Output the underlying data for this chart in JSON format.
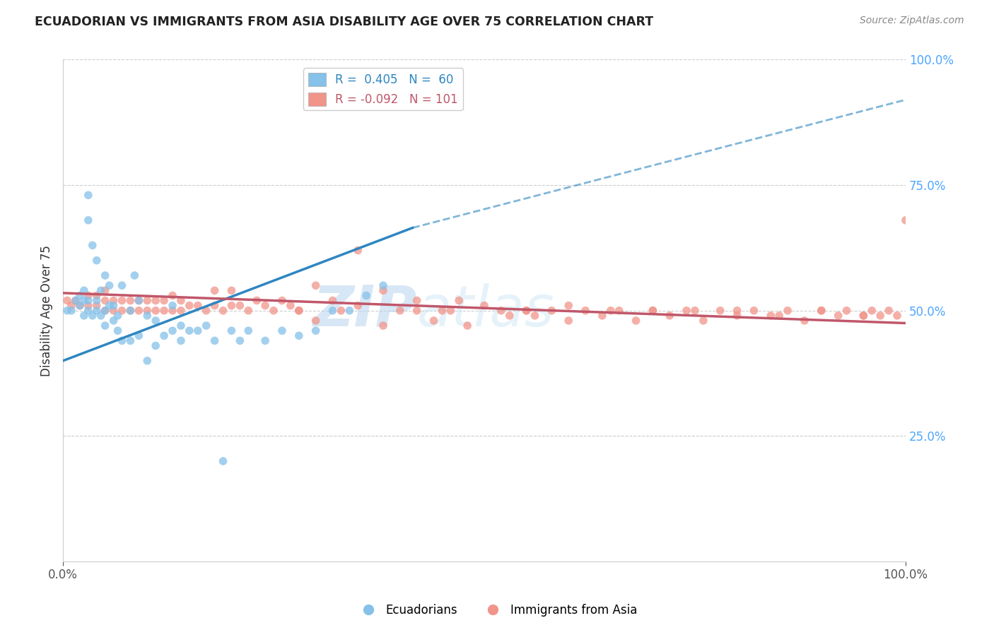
{
  "title": "ECUADORIAN VS IMMIGRANTS FROM ASIA DISABILITY AGE OVER 75 CORRELATION CHART",
  "source": "Source: ZipAtlas.com",
  "ylabel": "Disability Age Over 75",
  "xmin": 0.0,
  "xmax": 1.0,
  "ymin": 0.0,
  "ymax": 1.0,
  "yticks": [
    0.25,
    0.5,
    0.75,
    1.0
  ],
  "ytick_labels": [
    "25.0%",
    "50.0%",
    "75.0%",
    "100.0%"
  ],
  "blue_R": 0.405,
  "blue_N": 60,
  "pink_R": -0.092,
  "pink_N": 101,
  "blue_color": "#85c1e9",
  "pink_color": "#f1948a",
  "blue_line_color": "#2e86c1",
  "pink_line_color": "#c0576a",
  "blue_line_solid": [
    [
      0.0,
      0.4
    ],
    [
      0.415,
      0.665
    ]
  ],
  "blue_line_dashed": [
    [
      0.415,
      0.665
    ],
    [
      1.0,
      0.92
    ]
  ],
  "pink_line_solid": [
    [
      0.0,
      0.535
    ],
    [
      1.0,
      0.475
    ]
  ],
  "watermark": "ZIPatlas",
  "blue_scatter_x": [
    0.005,
    0.01,
    0.015,
    0.02,
    0.02,
    0.025,
    0.025,
    0.025,
    0.03,
    0.03,
    0.03,
    0.03,
    0.035,
    0.035,
    0.04,
    0.04,
    0.04,
    0.045,
    0.045,
    0.05,
    0.05,
    0.05,
    0.055,
    0.055,
    0.06,
    0.06,
    0.065,
    0.065,
    0.07,
    0.07,
    0.08,
    0.08,
    0.085,
    0.09,
    0.09,
    0.1,
    0.1,
    0.11,
    0.11,
    0.12,
    0.13,
    0.13,
    0.14,
    0.14,
    0.15,
    0.16,
    0.17,
    0.18,
    0.19,
    0.2,
    0.21,
    0.22,
    0.24,
    0.26,
    0.28,
    0.3,
    0.32,
    0.34,
    0.36,
    0.38
  ],
  "blue_scatter_y": [
    0.5,
    0.5,
    0.52,
    0.51,
    0.53,
    0.49,
    0.52,
    0.54,
    0.5,
    0.52,
    0.68,
    0.73,
    0.49,
    0.63,
    0.5,
    0.52,
    0.6,
    0.49,
    0.54,
    0.47,
    0.5,
    0.57,
    0.51,
    0.55,
    0.48,
    0.51,
    0.46,
    0.49,
    0.44,
    0.55,
    0.44,
    0.5,
    0.57,
    0.45,
    0.52,
    0.4,
    0.49,
    0.43,
    0.48,
    0.45,
    0.46,
    0.51,
    0.44,
    0.47,
    0.46,
    0.46,
    0.47,
    0.44,
    0.2,
    0.46,
    0.44,
    0.46,
    0.44,
    0.46,
    0.45,
    0.46,
    0.5,
    0.5,
    0.53,
    0.55
  ],
  "pink_scatter_x": [
    0.005,
    0.01,
    0.015,
    0.02,
    0.03,
    0.03,
    0.04,
    0.04,
    0.05,
    0.05,
    0.05,
    0.06,
    0.06,
    0.07,
    0.07,
    0.08,
    0.08,
    0.09,
    0.09,
    0.1,
    0.1,
    0.11,
    0.11,
    0.12,
    0.12,
    0.13,
    0.13,
    0.14,
    0.14,
    0.15,
    0.16,
    0.17,
    0.18,
    0.18,
    0.19,
    0.2,
    0.2,
    0.21,
    0.22,
    0.23,
    0.24,
    0.25,
    0.26,
    0.27,
    0.28,
    0.3,
    0.32,
    0.35,
    0.38,
    0.4,
    0.42,
    0.45,
    0.47,
    0.5,
    0.55,
    0.6,
    0.65,
    0.7,
    0.75,
    0.8,
    0.85,
    0.9,
    0.92,
    0.93,
    0.95,
    0.96,
    0.97,
    0.98,
    0.99,
    1.0,
    0.35,
    0.28,
    0.3,
    0.33,
    0.38,
    0.42,
    0.44,
    0.46,
    0.48,
    0.52,
    0.53,
    0.55,
    0.56,
    0.58,
    0.6,
    0.62,
    0.64,
    0.66,
    0.68,
    0.7,
    0.72,
    0.74,
    0.76,
    0.78,
    0.8,
    0.82,
    0.84,
    0.86,
    0.88,
    0.9,
    0.95
  ],
  "pink_scatter_y": [
    0.52,
    0.51,
    0.52,
    0.51,
    0.51,
    0.53,
    0.51,
    0.53,
    0.5,
    0.52,
    0.54,
    0.5,
    0.52,
    0.5,
    0.52,
    0.5,
    0.52,
    0.5,
    0.52,
    0.5,
    0.52,
    0.5,
    0.52,
    0.5,
    0.52,
    0.5,
    0.53,
    0.5,
    0.52,
    0.51,
    0.51,
    0.5,
    0.51,
    0.54,
    0.5,
    0.51,
    0.54,
    0.51,
    0.5,
    0.52,
    0.51,
    0.5,
    0.52,
    0.51,
    0.5,
    0.55,
    0.52,
    0.51,
    0.54,
    0.5,
    0.52,
    0.5,
    0.52,
    0.51,
    0.5,
    0.51,
    0.5,
    0.5,
    0.5,
    0.5,
    0.49,
    0.5,
    0.49,
    0.5,
    0.49,
    0.5,
    0.49,
    0.5,
    0.49,
    0.68,
    0.62,
    0.5,
    0.48,
    0.5,
    0.47,
    0.5,
    0.48,
    0.5,
    0.47,
    0.5,
    0.49,
    0.5,
    0.49,
    0.5,
    0.48,
    0.5,
    0.49,
    0.5,
    0.48,
    0.5,
    0.49,
    0.5,
    0.48,
    0.5,
    0.49,
    0.5,
    0.49,
    0.5,
    0.48,
    0.5,
    0.49
  ]
}
